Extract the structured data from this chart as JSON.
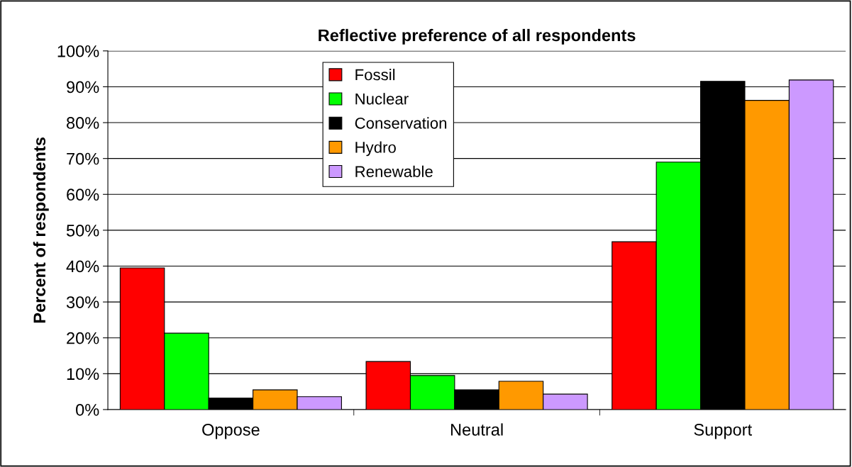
{
  "chart_data": {
    "type": "bar",
    "title": "Reflective preference of all respondents",
    "ylabel": "Percent of respondents",
    "categories": [
      "Oppose",
      "Neutral",
      "Support"
    ],
    "series": [
      {
        "name": "Fossil",
        "color": "#ff0000",
        "values": [
          39.5,
          13.4,
          46.8
        ]
      },
      {
        "name": "Nuclear",
        "color": "#00ff00",
        "values": [
          21.3,
          9.5,
          69.0
        ]
      },
      {
        "name": "Conservation",
        "color": "#000000",
        "values": [
          3.2,
          5.5,
          91.5
        ]
      },
      {
        "name": "Hydro",
        "color": "#ff9900",
        "values": [
          5.5,
          7.9,
          86.2
        ]
      },
      {
        "name": "Renewable",
        "color": "#cc99ff",
        "values": [
          3.6,
          4.3,
          91.9
        ]
      }
    ],
    "ylim": [
      0,
      100
    ],
    "yticks": [
      {
        "value": 0,
        "label": "0%"
      },
      {
        "value": 10,
        "label": "10%"
      },
      {
        "value": 20,
        "label": "20%"
      },
      {
        "value": 30,
        "label": "30%"
      },
      {
        "value": 40,
        "label": "40%"
      },
      {
        "value": 50,
        "label": "50%"
      },
      {
        "value": 60,
        "label": "60%"
      },
      {
        "value": 70,
        "label": "70%"
      },
      {
        "value": 80,
        "label": "80%"
      },
      {
        "value": 90,
        "label": "90%"
      },
      {
        "value": 100,
        "label": "100%"
      }
    ],
    "grid": "y",
    "legend": "top"
  }
}
